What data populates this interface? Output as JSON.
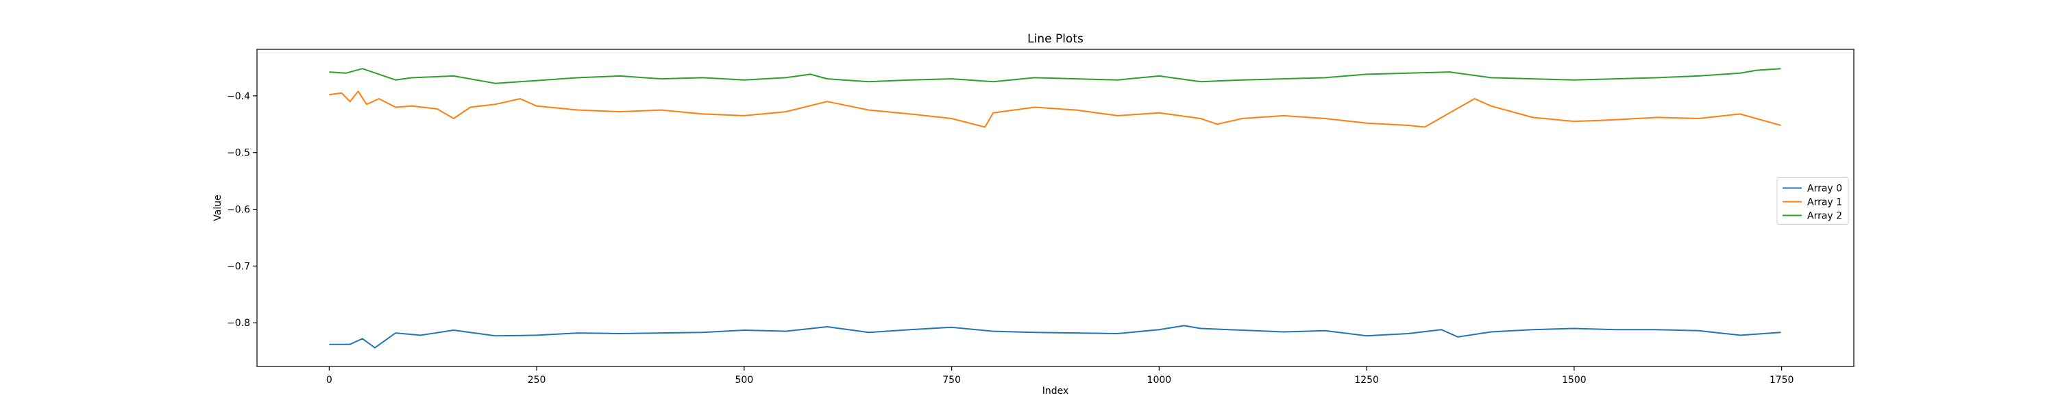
{
  "chart_data": {
    "type": "line",
    "title": "Line Plots",
    "xlabel": "Index",
    "ylabel": "Value",
    "xlim": [
      -87,
      1837
    ],
    "ylim": [
      -0.877,
      -0.318
    ],
    "xticks": [
      0,
      250,
      500,
      750,
      1000,
      1250,
      1500,
      1750
    ],
    "xtick_labels": [
      "0",
      "250",
      "500",
      "750",
      "1000",
      "1250",
      "1500",
      "1750"
    ],
    "yticks": [
      -0.8,
      -0.7,
      -0.6,
      -0.5,
      -0.4
    ],
    "ytick_labels": [
      "−0.8",
      "−0.7",
      "−0.6",
      "−0.5",
      "−0.4"
    ],
    "grid": false,
    "legend_position": "center-right",
    "series": [
      {
        "name": "Array 0",
        "color": "#1f77b4",
        "x": [
          0,
          25,
          40,
          55,
          80,
          110,
          150,
          200,
          250,
          300,
          350,
          400,
          450,
          500,
          550,
          600,
          650,
          700,
          750,
          800,
          850,
          900,
          950,
          1000,
          1030,
          1050,
          1100,
          1150,
          1200,
          1250,
          1300,
          1340,
          1360,
          1400,
          1450,
          1500,
          1550,
          1600,
          1650,
          1700,
          1749
        ],
        "y": [
          -0.838,
          -0.838,
          -0.828,
          -0.844,
          -0.818,
          -0.822,
          -0.813,
          -0.823,
          -0.822,
          -0.818,
          -0.819,
          -0.818,
          -0.817,
          -0.813,
          -0.815,
          -0.807,
          -0.817,
          -0.812,
          -0.808,
          -0.815,
          -0.817,
          -0.818,
          -0.819,
          -0.812,
          -0.805,
          -0.81,
          -0.813,
          -0.816,
          -0.814,
          -0.823,
          -0.819,
          -0.812,
          -0.825,
          -0.816,
          -0.812,
          -0.81,
          -0.812,
          -0.812,
          -0.814,
          -0.822,
          -0.817
        ]
      },
      {
        "name": "Array 1",
        "color": "#ff7f0e",
        "x": [
          0,
          15,
          25,
          35,
          45,
          60,
          80,
          100,
          130,
          150,
          170,
          200,
          230,
          250,
          300,
          350,
          400,
          450,
          500,
          550,
          600,
          650,
          700,
          750,
          790,
          800,
          850,
          900,
          950,
          1000,
          1050,
          1070,
          1100,
          1150,
          1200,
          1250,
          1300,
          1320,
          1350,
          1380,
          1400,
          1450,
          1500,
          1550,
          1600,
          1650,
          1700,
          1749
        ],
        "y": [
          -0.398,
          -0.395,
          -0.41,
          -0.392,
          -0.415,
          -0.405,
          -0.42,
          -0.418,
          -0.423,
          -0.44,
          -0.42,
          -0.415,
          -0.405,
          -0.418,
          -0.425,
          -0.428,
          -0.425,
          -0.432,
          -0.435,
          -0.428,
          -0.41,
          -0.425,
          -0.432,
          -0.44,
          -0.455,
          -0.43,
          -0.42,
          -0.425,
          -0.435,
          -0.43,
          -0.44,
          -0.45,
          -0.44,
          -0.435,
          -0.44,
          -0.448,
          -0.452,
          -0.455,
          -0.43,
          -0.405,
          -0.418,
          -0.438,
          -0.445,
          -0.442,
          -0.438,
          -0.44,
          -0.432,
          -0.452
        ]
      },
      {
        "name": "Array 2",
        "color": "#2ca02c",
        "x": [
          0,
          20,
          40,
          60,
          80,
          100,
          150,
          200,
          250,
          300,
          350,
          400,
          450,
          500,
          550,
          580,
          600,
          650,
          700,
          750,
          800,
          850,
          900,
          950,
          1000,
          1050,
          1100,
          1150,
          1200,
          1250,
          1300,
          1350,
          1400,
          1450,
          1500,
          1550,
          1600,
          1650,
          1700,
          1720,
          1749
        ],
        "y": [
          -0.358,
          -0.36,
          -0.352,
          -0.362,
          -0.372,
          -0.368,
          -0.365,
          -0.378,
          -0.373,
          -0.368,
          -0.365,
          -0.37,
          -0.368,
          -0.372,
          -0.368,
          -0.362,
          -0.37,
          -0.375,
          -0.372,
          -0.37,
          -0.375,
          -0.368,
          -0.37,
          -0.372,
          -0.365,
          -0.375,
          -0.372,
          -0.37,
          -0.368,
          -0.362,
          -0.36,
          -0.358,
          -0.368,
          -0.37,
          -0.372,
          -0.37,
          -0.368,
          -0.365,
          -0.36,
          -0.355,
          -0.352
        ]
      }
    ]
  }
}
